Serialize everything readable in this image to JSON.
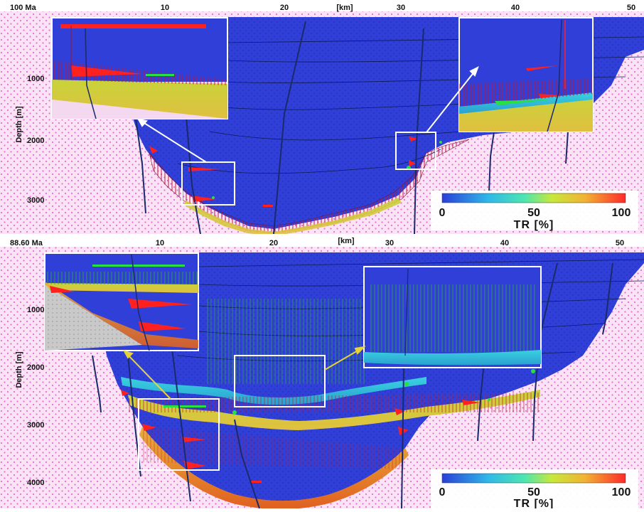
{
  "colors": {
    "basin_fill": "#2f3fd8",
    "basement_fill": "#fbe3f6",
    "basement_dots": "#e56fd0",
    "fault_line": "#1a2a6b",
    "tr_low": "#2a3fd8",
    "tr_high": "#ff2a2a",
    "callout_white": "#ffffff",
    "callout_yellow": "#e8d23a"
  },
  "panels": [
    {
      "id": "top",
      "age_label": "100 Ma",
      "x_unit_label": "[km]",
      "x_ticks": [
        "10",
        "20",
        "30",
        "40",
        "50"
      ],
      "depth_label": "Depth [m]",
      "depth_ticks": [
        "1000",
        "2000",
        "3000"
      ],
      "colorbar": {
        "title": "TR [%]",
        "tick_labels": [
          "0",
          "50",
          "100"
        ]
      },
      "insets": [
        "left-zoom",
        "right-zoom"
      ]
    },
    {
      "id": "bottom",
      "age_label": "88.60 Ma",
      "x_unit_label": "[km]",
      "x_ticks": [
        "10",
        "20",
        "30",
        "40",
        "50"
      ],
      "depth_label": "Depth [m]",
      "depth_ticks": [
        "1000",
        "2000",
        "3000",
        "4000"
      ],
      "colorbar": {
        "title": "TR [%]",
        "tick_labels": [
          "0",
          "50",
          "100"
        ]
      },
      "insets": [
        "left-zoom",
        "center-zoom"
      ]
    }
  ]
}
